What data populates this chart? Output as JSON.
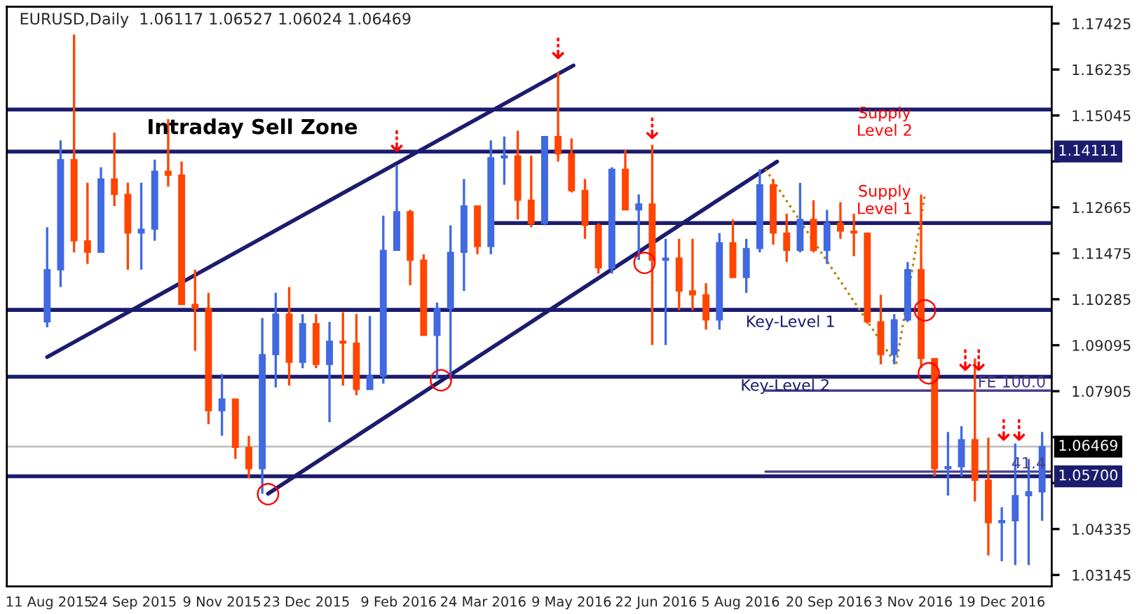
{
  "chart_data": {
    "type": "candlestick",
    "title": "EURUSD,Daily  1.06117 1.06527 1.06024 1.06469",
    "x": [
      "2015-08-10",
      "2015-08-17",
      "2015-08-24",
      "2015-08-31",
      "2015-09-07",
      "2015-09-14",
      "2015-09-21",
      "2015-09-28",
      "2015-10-05",
      "2015-10-12",
      "2015-10-19",
      "2015-10-26",
      "2015-11-02",
      "2015-11-09",
      "2015-11-16",
      "2015-11-23",
      "2015-11-30",
      "2015-12-07",
      "2015-12-14",
      "2015-12-21",
      "2015-12-28",
      "2016-01-04",
      "2016-01-11",
      "2016-01-18",
      "2016-01-25",
      "2016-02-01",
      "2016-02-08",
      "2016-02-15",
      "2016-02-22",
      "2016-02-29",
      "2016-03-07",
      "2016-03-14",
      "2016-03-21",
      "2016-03-28",
      "2016-04-04",
      "2016-04-11",
      "2016-04-18",
      "2016-04-25",
      "2016-05-02",
      "2016-05-09",
      "2016-05-16",
      "2016-05-23",
      "2016-05-30",
      "2016-06-06",
      "2016-06-13",
      "2016-06-20",
      "2016-06-27",
      "2016-07-04",
      "2016-07-11",
      "2016-07-18",
      "2016-07-25",
      "2016-08-01",
      "2016-08-08",
      "2016-08-15",
      "2016-08-22",
      "2016-08-29",
      "2016-09-05",
      "2016-09-12",
      "2016-09-19",
      "2016-09-26",
      "2016-10-03",
      "2016-10-10",
      "2016-10-17",
      "2016-10-24",
      "2016-10-31",
      "2016-11-07",
      "2016-11-14",
      "2016-11-21",
      "2016-11-28",
      "2016-12-05",
      "2016-12-12",
      "2016-12-19",
      "2016-12-26",
      "2017-01-02",
      "2017-01-09"
    ],
    "ohlc": [
      [
        1.097,
        1.1215,
        1.0956,
        1.1105
      ],
      [
        1.1105,
        1.144,
        1.106,
        1.139
      ],
      [
        1.139,
        1.1714,
        1.115,
        1.118
      ],
      [
        1.118,
        1.133,
        1.112,
        1.115
      ],
      [
        1.115,
        1.137,
        1.115,
        1.134
      ],
      [
        1.134,
        1.146,
        1.127,
        1.13
      ],
      [
        1.13,
        1.133,
        1.1105,
        1.12
      ],
      [
        1.12,
        1.133,
        1.1105,
        1.121
      ],
      [
        1.121,
        1.139,
        1.118,
        1.136
      ],
      [
        1.136,
        1.1495,
        1.132,
        1.135
      ],
      [
        1.135,
        1.1385,
        1.1015,
        1.1015
      ],
      [
        1.1015,
        1.1105,
        1.0895,
        1.1005
      ],
      [
        1.1005,
        1.1045,
        1.0705,
        1.074
      ],
      [
        1.074,
        1.0835,
        1.0675,
        1.077
      ],
      [
        1.077,
        1.077,
        1.0615,
        1.0645
      ],
      [
        1.0645,
        1.0675,
        1.0565,
        1.059
      ],
      [
        1.059,
        1.098,
        1.0525,
        1.0885
      ],
      [
        1.0885,
        1.1045,
        1.08,
        1.099
      ],
      [
        1.099,
        1.106,
        1.0805,
        1.0865
      ],
      [
        1.0865,
        1.099,
        1.085,
        1.0965
      ],
      [
        1.0965,
        1.099,
        1.085,
        1.086
      ],
      [
        1.086,
        1.097,
        1.071,
        1.092
      ],
      [
        1.092,
        1.0995,
        1.0805,
        1.0915
      ],
      [
        1.0915,
        1.099,
        1.078,
        1.0795
      ],
      [
        1.0795,
        1.0985,
        1.0795,
        1.083
      ],
      [
        1.083,
        1.1245,
        1.081,
        1.1155
      ],
      [
        1.1155,
        1.1376,
        1.1155,
        1.1255
      ],
      [
        1.1255,
        1.126,
        1.1065,
        1.113
      ],
      [
        1.113,
        1.1145,
        1.0935,
        1.0935
      ],
      [
        1.0935,
        1.102,
        1.0822,
        1.1005
      ],
      [
        1.1005,
        1.122,
        1.082,
        1.115
      ],
      [
        1.115,
        1.134,
        1.105,
        1.127
      ],
      [
        1.127,
        1.127,
        1.1145,
        1.1165
      ],
      [
        1.1165,
        1.144,
        1.1145,
        1.1395
      ],
      [
        1.1395,
        1.145,
        1.1325,
        1.14
      ],
      [
        1.14,
        1.1465,
        1.1235,
        1.1285
      ],
      [
        1.1285,
        1.14,
        1.1215,
        1.1225
      ],
      [
        1.1225,
        1.145,
        1.122,
        1.145
      ],
      [
        1.145,
        1.1616,
        1.1385,
        1.1405
      ],
      [
        1.1405,
        1.1445,
        1.1305,
        1.131
      ],
      [
        1.131,
        1.134,
        1.1185,
        1.122
      ],
      [
        1.122,
        1.1225,
        1.1095,
        1.111
      ],
      [
        1.111,
        1.137,
        1.1095,
        1.1365
      ],
      [
        1.1365,
        1.1415,
        1.126,
        1.126
      ],
      [
        1.126,
        1.13,
        1.113,
        1.1275
      ],
      [
        1.1275,
        1.1428,
        1.091,
        1.113
      ],
      [
        1.113,
        1.1185,
        1.091,
        1.1135
      ],
      [
        1.1135,
        1.1185,
        1.1,
        1.105
      ],
      [
        1.105,
        1.1185,
        1.1,
        1.104
      ],
      [
        1.104,
        1.107,
        1.095,
        1.0975
      ],
      [
        1.0975,
        1.12,
        1.095,
        1.1175
      ],
      [
        1.1175,
        1.1235,
        1.1085,
        1.1085
      ],
      [
        1.1085,
        1.1185,
        1.1045,
        1.116
      ],
      [
        1.116,
        1.1365,
        1.115,
        1.1325
      ],
      [
        1.1325,
        1.134,
        1.117,
        1.12
      ],
      [
        1.12,
        1.125,
        1.1125,
        1.1155
      ],
      [
        1.1155,
        1.133,
        1.115,
        1.1235
      ],
      [
        1.1235,
        1.1285,
        1.115,
        1.1155
      ],
      [
        1.1155,
        1.126,
        1.112,
        1.1225
      ],
      [
        1.1225,
        1.128,
        1.1185,
        1.1205
      ],
      [
        1.1205,
        1.125,
        1.114,
        1.12
      ],
      [
        1.12,
        1.12,
        1.0965,
        1.097
      ],
      [
        1.097,
        1.104,
        1.086,
        1.0885
      ],
      [
        1.0885,
        1.099,
        1.086,
        1.0975
      ],
      [
        1.0975,
        1.1125,
        1.097,
        1.1105
      ],
      [
        1.1105,
        1.13,
        1.085,
        1.0875
      ],
      [
        1.0875,
        1.0875,
        1.057,
        1.059
      ],
      [
        1.059,
        1.0685,
        1.052,
        1.0595
      ],
      [
        1.0595,
        1.07,
        1.057,
        1.0665
      ],
      [
        1.0665,
        1.0875,
        1.0505,
        1.056
      ],
      [
        1.056,
        1.067,
        1.0365,
        1.045
      ],
      [
        1.045,
        1.049,
        1.035,
        1.0455
      ],
      [
        1.0455,
        1.0655,
        1.034,
        1.052
      ],
      [
        1.052,
        1.0615,
        1.034,
        1.053
      ],
      [
        1.053,
        1.0685,
        1.0455,
        1.0647
      ]
    ],
    "colors": [
      "#4169e1",
      "#4169e1",
      "#ff4500",
      "#ff4500",
      "#4169e1",
      "#ff4500",
      "#ff4500",
      "#4169e1",
      "#4169e1",
      "#ff4500",
      "#ff4500",
      "#ff4500",
      "#ff4500",
      "#4169e1",
      "#ff4500",
      "#ff4500",
      "#4169e1",
      "#4169e1",
      "#ff4500",
      "#4169e1",
      "#ff4500",
      "#4169e1",
      "#ff4500",
      "#ff4500",
      "#4169e1",
      "#4169e1",
      "#4169e1",
      "#ff4500",
      "#ff4500",
      "#4169e1",
      "#4169e1",
      "#4169e1",
      "#ff4500",
      "#4169e1",
      "#4169e1",
      "#ff4500",
      "#ff4500",
      "#4169e1",
      "#ff4500",
      "#ff4500",
      "#ff4500",
      "#ff4500",
      "#4169e1",
      "#ff4500",
      "#4169e1",
      "#ff4500",
      "#4169e1",
      "#ff4500",
      "#ff4500",
      "#ff4500",
      "#4169e1",
      "#ff4500",
      "#4169e1",
      "#4169e1",
      "#ff4500",
      "#ff4500",
      "#4169e1",
      "#ff4500",
      "#4169e1",
      "#ff4500",
      "#ff4500",
      "#ff4500",
      "#ff4500",
      "#4169e1",
      "#4169e1",
      "#ff4500",
      "#ff4500",
      "#4169e1",
      "#4169e1",
      "#ff4500",
      "#ff4500",
      "#4169e1",
      "#4169e1",
      "#4169e1",
      "#4169e1"
    ],
    "series": [
      {
        "type": "line",
        "x": [
          "2015-08-10",
          "2016-05-10"
        ],
        "values": [
          1.0879,
          1.1634
        ],
        "color": "#1c1c6e"
      },
      {
        "type": "line",
        "x": [
          "2015-12-03",
          "2016-08-24"
        ],
        "values": [
          1.0525,
          1.1385
        ],
        "color": "#1c1c6e"
      },
      {
        "type": "line",
        "x": [
          "2016-03-29",
          "2017-01-13"
        ],
        "values": [
          1.1226,
          1.1226
        ],
        "color": "#1c1c6e"
      },
      {
        "type": "line",
        "x": [
          "2016-08-18",
          "2016-10-25",
          "2016-11-09"
        ],
        "values": [
          1.1365,
          1.086,
          1.13
        ],
        "color": "#b8860b",
        "line_style": "dotted"
      },
      {
        "type": "line",
        "name": "FE 100.0",
        "x": [
          "2016-08-18",
          "2017-01-13"
        ],
        "values": [
          1.0792,
          1.0792
        ],
        "color": "#483d8b"
      },
      {
        "type": "line",
        "name": "41.4",
        "x": [
          "2016-08-18",
          "2017-01-13"
        ],
        "values": [
          1.0582,
          1.0582
        ],
        "color": "#483d8b"
      }
    ],
    "ref_lines": [
      {
        "axis": "y",
        "value": 1.152,
        "color": "#1c1c6e"
      },
      {
        "axis": "y",
        "value": 1.14111,
        "label": "1.14111",
        "color": "#1c1c6e"
      },
      {
        "axis": "y",
        "value": 1.1001,
        "color": "#1c1c6e"
      },
      {
        "axis": "y",
        "value": 1.0828,
        "color": "#1c1c6e"
      },
      {
        "axis": "y",
        "value": 1.06469,
        "label": "1.06469",
        "color": "#c0c0c0"
      },
      {
        "axis": "y",
        "value": 1.057,
        "label": "1.05700",
        "color": "#1c1c6e"
      }
    ],
    "annotations": [
      "Intraday Sell Zone",
      "Supply\nLevel 2",
      "Supply\nLevel 1",
      "Key-Level 1",
      "Key-Level 2",
      {
        "text": "⇣",
        "x": "2016-02-08",
        "y": 1.1395
      },
      {
        "text": "⇣",
        "x": "2016-05-02",
        "y": 1.1635
      },
      {
        "text": "⇣",
        "x": "2016-06-20",
        "y": 1.1428
      },
      {
        "text": "⇣",
        "x": "2016-11-30",
        "y": 1.0828
      },
      {
        "text": "⇣",
        "x": "2016-12-07",
        "y": 1.0828
      },
      {
        "text": "⇣",
        "x": "2016-12-20",
        "y": 1.06469
      },
      {
        "text": "⇣",
        "x": "2016-12-28",
        "y": 1.06469
      },
      {
        "text": "○",
        "x": "2015-12-03",
        "y": 1.0525
      },
      {
        "text": "○",
        "x": "2016-03-02",
        "y": 1.082
      },
      {
        "text": "○",
        "x": "2016-06-16",
        "y": 1.1124
      },
      {
        "text": "○",
        "x": "2016-11-09",
        "y": 1.1001
      },
      {
        "text": "○",
        "x": "2016-11-11",
        "y": 1.0838
      }
    ],
    "xlim": [
      "2015-07-20",
      "2017-01-14"
    ],
    "xticks": [
      {
        "value": "2015-08-11",
        "label": "11 Aug 2015"
      },
      {
        "value": "2015-09-24",
        "label": "24 Sep 2015"
      },
      {
        "value": "2015-11-09",
        "label": "9 Nov 2015"
      },
      {
        "value": "2015-12-23",
        "label": "23 Dec 2015"
      },
      {
        "value": "2016-02-09",
        "label": "9 Feb 2016"
      },
      {
        "value": "2016-03-24",
        "label": "24 Mar 2016"
      },
      {
        "value": "2016-05-09",
        "label": "9 May 2016"
      },
      {
        "value": "2016-06-22",
        "label": "22 Jun 2016"
      },
      {
        "value": "2016-08-05",
        "label": "5 Aug 2016"
      },
      {
        "value": "2016-09-20",
        "label": "20 Sep 2016"
      },
      {
        "value": "2016-11-03",
        "label": "3 Nov 2016"
      },
      {
        "value": "2016-12-19",
        "label": "19 Dec 2016"
      }
    ],
    "ylim": [
      1.0285,
      1.1786
    ],
    "yticks": [
      1.03145,
      1.04335,
      {
        "value": 1.05525,
        "label": null
      },
      {
        "value": 1.06715,
        "label": null
      },
      1.07905,
      1.09095,
      1.10285,
      1.11475,
      1.12665,
      {
        "value": 1.13855,
        "label": null
      },
      1.15045,
      1.16235,
      1.17425
    ],
    "grid": false,
    "legend": false
  }
}
